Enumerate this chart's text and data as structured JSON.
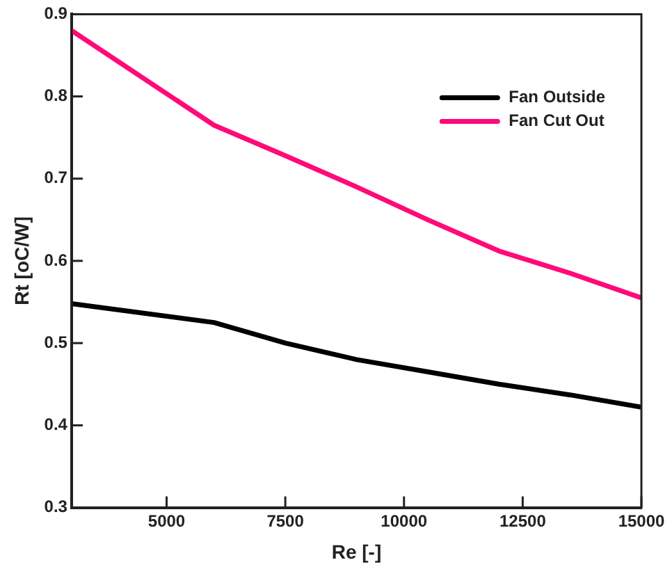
{
  "chart_data": {
    "type": "line",
    "xlabel": "Re [-]",
    "ylabel": "Rt [oC/W]",
    "xlim": [
      3000,
      15000
    ],
    "xticks": [
      5000,
      7500,
      10000,
      12500,
      15000
    ],
    "ylim": [
      0.3,
      0.9
    ],
    "yticks": [
      0.3,
      0.4,
      0.5,
      0.6,
      0.7,
      0.8,
      0.9
    ],
    "grid": false,
    "legend": "top right",
    "marker": "none",
    "line_style": "solid",
    "x": [
      3000,
      6000,
      7500,
      9000,
      10500,
      12000,
      13500,
      15000
    ],
    "series": [
      {
        "name": "Fan Outside",
        "color": "#000000",
        "values": [
          0.548,
          0.525,
          0.5,
          0.48,
          0.465,
          0.45,
          0.437,
          0.422
        ]
      },
      {
        "name": "Fan Cut Out",
        "color": "#ff0a78",
        "values": [
          0.88,
          0.765,
          0.728,
          0.69,
          0.65,
          0.612,
          0.585,
          0.555
        ]
      }
    ]
  }
}
